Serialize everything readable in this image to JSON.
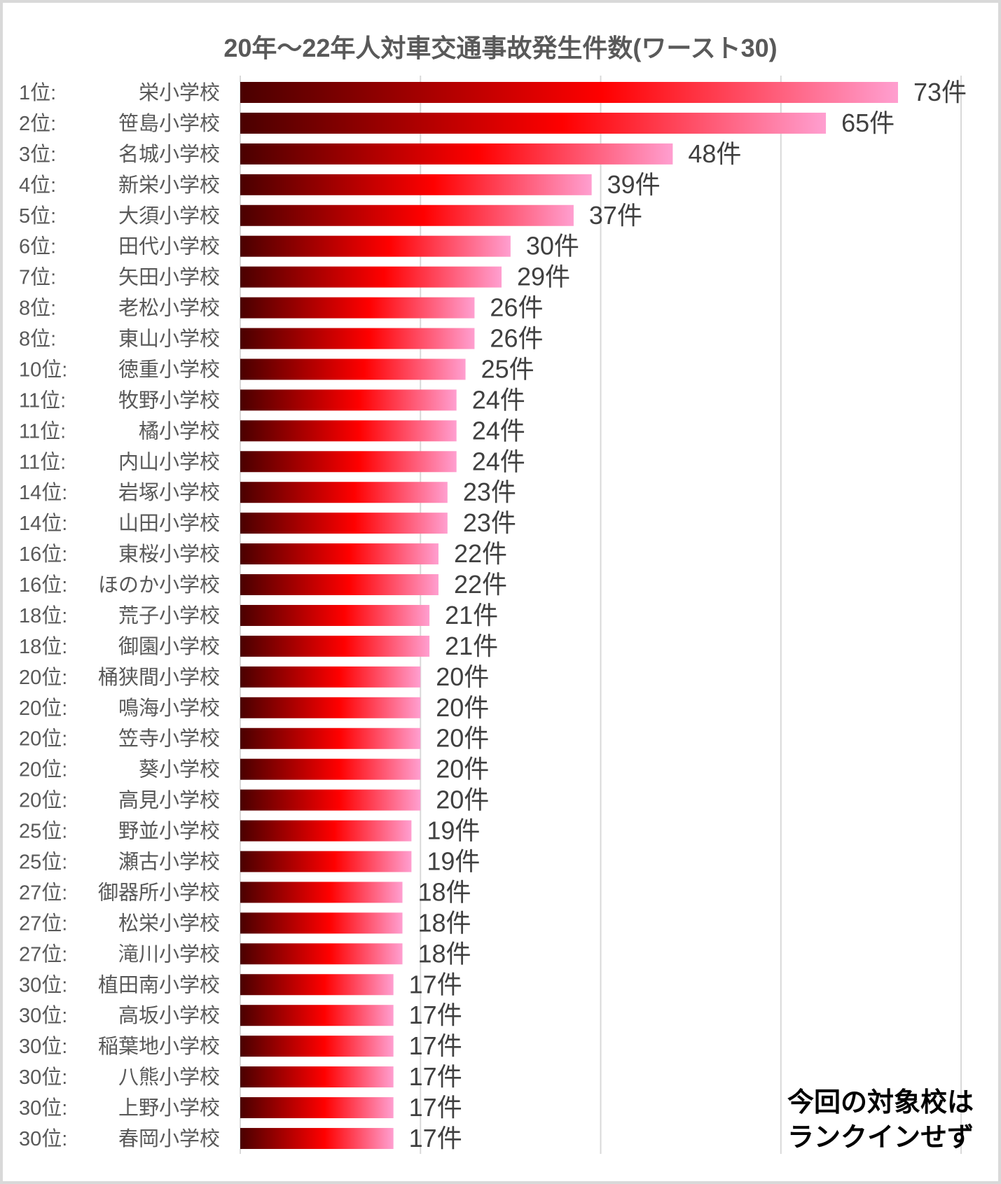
{
  "chart_data": {
    "type": "bar",
    "orientation": "horizontal",
    "title": "20年～22年人対車交通事故発生件数(ワースト30)",
    "xlabel": "",
    "ylabel": "",
    "xlim": [
      0,
      80
    ],
    "grid": true,
    "gridlines": [
      20,
      40,
      60,
      80
    ],
    "value_suffix": "件",
    "ranks": [
      "1位:",
      "2位:",
      "3位:",
      "4位:",
      "5位:",
      "6位:",
      "7位:",
      "8位:",
      "8位:",
      "10位:",
      "11位:",
      "11位:",
      "11位:",
      "14位:",
      "14位:",
      "16位:",
      "16位:",
      "18位:",
      "18位:",
      "20位:",
      "20位:",
      "20位:",
      "20位:",
      "20位:",
      "25位:",
      "25位:",
      "27位:",
      "27位:",
      "27位:",
      "30位:",
      "30位:",
      "30位:",
      "30位:",
      "30位:",
      "30位:"
    ],
    "categories": [
      "栄小学校",
      "笹島小学校",
      "名城小学校",
      "新栄小学校",
      "大須小学校",
      "田代小学校",
      "矢田小学校",
      "老松小学校",
      "東山小学校",
      "徳重小学校",
      "牧野小学校",
      "橘小学校",
      "内山小学校",
      "岩塚小学校",
      "山田小学校",
      "東桜小学校",
      "ほのか小学校",
      "荒子小学校",
      "御園小学校",
      "桶狭間小学校",
      "鳴海小学校",
      "笠寺小学校",
      "葵小学校",
      "高見小学校",
      "野並小学校",
      "瀬古小学校",
      "御器所小学校",
      "松栄小学校",
      "滝川小学校",
      "植田南小学校",
      "高坂小学校",
      "稲葉地小学校",
      "八熊小学校",
      "上野小学校",
      "春岡小学校"
    ],
    "values": [
      73,
      65,
      48,
      39,
      37,
      30,
      29,
      26,
      26,
      25,
      24,
      24,
      24,
      23,
      23,
      22,
      22,
      21,
      21,
      20,
      20,
      20,
      20,
      20,
      19,
      19,
      18,
      18,
      18,
      17,
      17,
      17,
      17,
      17,
      17
    ],
    "gradient_colors": [
      "#4a0000",
      "#ff0000",
      "#ff9fd0"
    ],
    "annotation": [
      "今回の対象校は",
      "ランクインせず"
    ]
  }
}
